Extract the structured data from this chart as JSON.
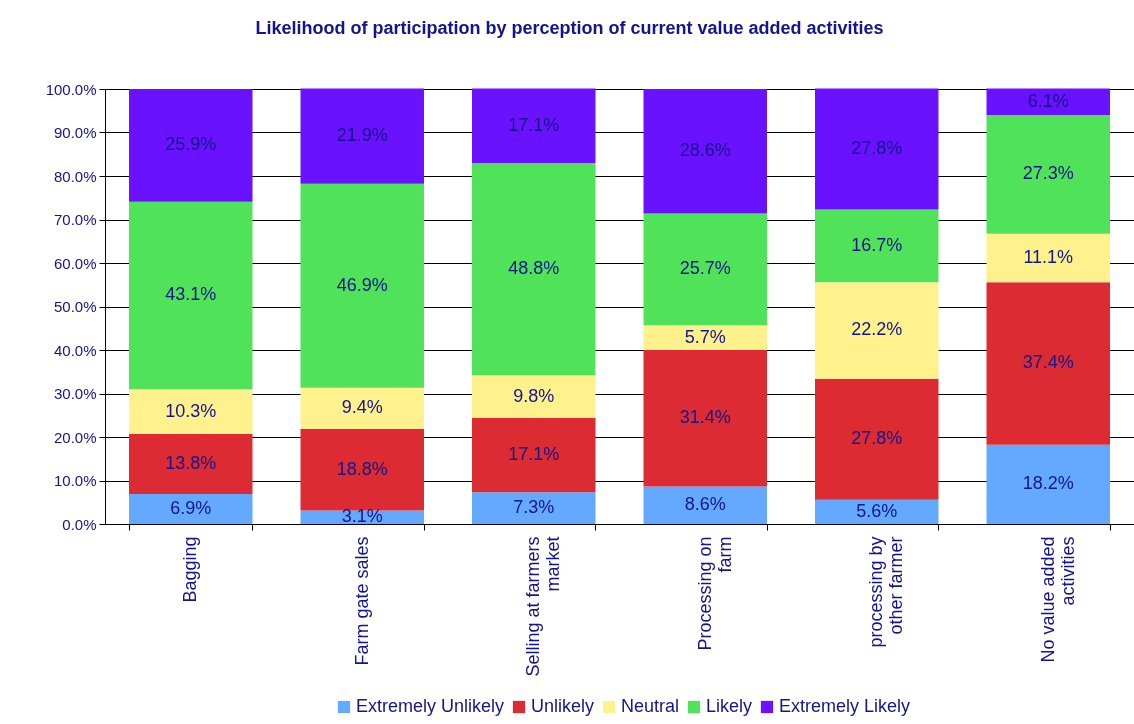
{
  "chart_data": {
    "type": "bar",
    "title": "Likelihood of participation by perception of current value added activities",
    "categories": [
      "Bagging",
      "Farm gate sales",
      "Selling at farmers market",
      "Processing on farm",
      "processing by other farmer",
      "No value added activities"
    ],
    "series": [
      {
        "name": "Extremely Unlikely",
        "color": "#63a9ff",
        "values": [
          6.9,
          3.1,
          7.3,
          8.6,
          5.6,
          18.2
        ],
        "value_labels": [
          "6.9%",
          "3.1%",
          "7.3%",
          "8.6%",
          "5.6%",
          "18.2%"
        ]
      },
      {
        "name": "Unlikely",
        "color": "#dc2b32",
        "values": [
          13.8,
          18.8,
          17.1,
          31.4,
          27.8,
          37.4
        ],
        "value_labels": [
          "13.8%",
          "18.8%",
          "17.1%",
          "31.4%",
          "27.8%",
          "37.4%"
        ]
      },
      {
        "name": "Neutral",
        "color": "#fff18c",
        "values": [
          10.3,
          9.4,
          9.8,
          5.7,
          22.2,
          11.1
        ],
        "value_labels": [
          "10.3%",
          "9.4%",
          "9.8%",
          "5.7%",
          "22.2%",
          "11.1%"
        ]
      },
      {
        "name": "Likely",
        "color": "#50e35a",
        "values": [
          43.1,
          46.9,
          48.8,
          25.7,
          16.7,
          27.3
        ],
        "value_labels": [
          "43.1%",
          "46.9%",
          "48.8%",
          "25.7%",
          "16.7%",
          "27.3%"
        ]
      },
      {
        "name": "Extremely Likely",
        "color": "#6a12ff",
        "values": [
          25.9,
          21.9,
          17.1,
          28.6,
          27.8,
          6.1
        ],
        "value_labels": [
          "25.9%",
          "21.9%",
          "17.1%",
          "28.6%",
          "27.8%",
          "6.1%"
        ]
      }
    ],
    "stacked": true,
    "ylim": [
      0,
      100
    ],
    "yticks": [
      {
        "value": 0,
        "label": "0.0%"
      },
      {
        "value": 10,
        "label": "10.0%"
      },
      {
        "value": 20,
        "label": "20.0%"
      },
      {
        "value": 30,
        "label": "30.0%"
      },
      {
        "value": 40,
        "label": "40.0%"
      },
      {
        "value": 50,
        "label": "50.0%"
      },
      {
        "value": 60,
        "label": "60.0%"
      },
      {
        "value": 70,
        "label": "70.0%"
      },
      {
        "value": 80,
        "label": "80.0%"
      },
      {
        "value": 90,
        "label": "90.0%"
      },
      {
        "value": 100,
        "label": "100.0%"
      }
    ],
    "grid": "y",
    "legend": "bottom"
  }
}
